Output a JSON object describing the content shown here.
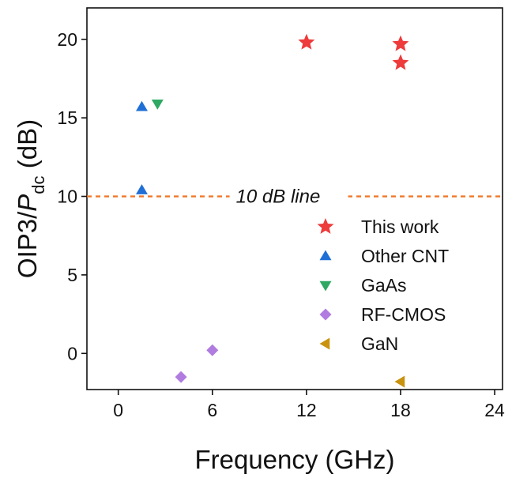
{
  "chart_data": {
    "type": "scatter",
    "xlabel": "Frequency (GHz)",
    "ylabel": {
      "main": "OIP3/",
      "var": "P",
      "sub": "dc",
      "unit": " (dB)"
    },
    "xlim": [
      -2,
      24.5
    ],
    "ylim": [
      -2.3,
      22
    ],
    "xticks": [
      0,
      6,
      12,
      18,
      24
    ],
    "yticks": [
      0,
      5,
      10,
      15,
      20
    ],
    "grid": false,
    "legend_position": "bottom-right",
    "reference_line": {
      "y": 10,
      "label": "10 dB line",
      "color": "#F07828"
    },
    "series": [
      {
        "name": "This work",
        "marker": "star",
        "color": "#EE3B3B",
        "points": [
          [
            12,
            19.8
          ],
          [
            18,
            19.7
          ],
          [
            18,
            18.5
          ]
        ]
      },
      {
        "name": "Other CNT",
        "marker": "triangle-up",
        "color": "#1F6FD6",
        "points": [
          [
            1.5,
            15.7
          ],
          [
            1.5,
            10.4
          ]
        ]
      },
      {
        "name": "GaAs",
        "marker": "triangle-down",
        "color": "#2EA862",
        "points": [
          [
            2.5,
            15.9
          ]
        ]
      },
      {
        "name": "RF-CMOS",
        "marker": "diamond",
        "color": "#B07CE0",
        "points": [
          [
            4,
            -1.5
          ],
          [
            6,
            0.2
          ]
        ]
      },
      {
        "name": "GaN",
        "marker": "triangle-left",
        "color": "#C9920F",
        "points": [
          [
            18,
            -1.8
          ]
        ]
      }
    ]
  }
}
